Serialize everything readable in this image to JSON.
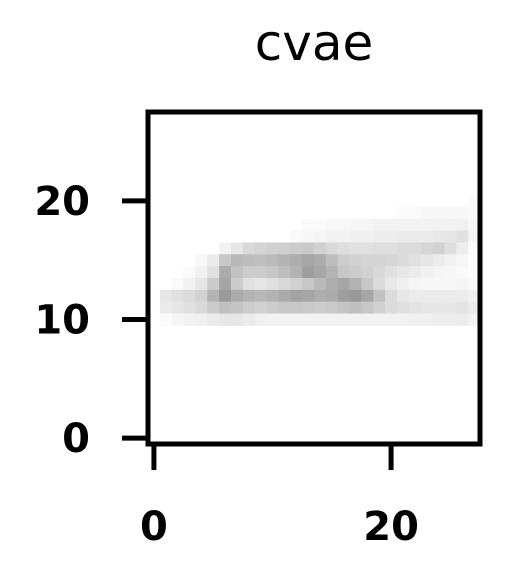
{
  "chart_data": {
    "type": "heatmap",
    "title": "cvae",
    "xlabel": "",
    "ylabel": "",
    "colormap": "gray_r",
    "grid": false,
    "shape": [
      28,
      28
    ],
    "xlim": [
      -0.5,
      27.5
    ],
    "ylim": [
      27.5,
      -0.5
    ],
    "x_ticks": [
      0,
      20
    ],
    "y_ticks": [
      0,
      10,
      20
    ],
    "x_tick_labels": [
      "0",
      "20"
    ],
    "y_tick_labels": [
      "0",
      "10",
      "20"
    ],
    "values": [
      [
        0,
        0,
        0,
        0,
        0,
        0,
        0,
        0,
        0,
        0,
        0,
        0,
        0,
        0,
        0,
        0,
        0,
        0,
        0,
        0,
        0,
        0,
        0,
        0,
        0,
        0,
        0,
        0
      ],
      [
        0,
        0,
        0,
        0,
        0,
        0,
        0,
        0,
        0,
        0,
        0,
        0,
        0,
        0,
        0,
        0,
        0,
        0,
        0,
        0,
        0,
        0,
        0,
        0,
        0,
        0,
        0,
        0
      ],
      [
        0,
        0,
        0,
        0,
        0,
        0,
        0,
        0,
        0,
        0,
        0,
        0,
        0,
        0,
        0,
        0,
        0,
        0,
        0,
        0,
        0,
        0,
        0,
        0,
        0,
        0,
        0,
        0
      ],
      [
        0,
        0,
        0,
        0,
        0,
        0,
        0,
        0,
        0,
        0,
        0,
        0,
        0,
        0,
        0,
        0,
        0,
        0,
        0,
        0,
        0,
        0,
        0,
        0,
        0,
        0,
        0,
        0
      ],
      [
        0,
        0,
        0,
        0,
        0,
        0,
        0,
        0,
        0,
        0,
        0,
        0,
        0,
        0,
        0,
        0,
        0,
        0,
        0,
        0,
        0,
        0,
        0,
        0,
        0,
        0,
        0,
        0
      ],
      [
        0,
        0,
        0,
        0,
        0,
        0,
        0,
        0,
        0,
        0,
        0,
        0,
        0,
        0,
        0,
        0,
        0,
        0,
        0,
        0,
        0,
        0,
        0,
        0,
        0,
        0,
        0,
        0
      ],
      [
        0,
        0,
        0,
        0,
        0,
        0,
        0,
        0,
        0,
        0,
        0,
        0,
        0,
        0,
        0,
        0,
        0,
        0,
        0,
        0,
        0,
        0,
        0,
        0,
        0,
        0,
        0,
        0
      ],
      [
        0,
        0,
        0,
        0,
        0,
        0,
        0,
        0,
        0,
        0,
        0,
        0,
        0,
        0,
        0,
        0,
        0,
        0,
        0,
        0,
        0,
        0,
        0,
        0,
        0,
        0,
        0,
        0.02
      ],
      [
        0,
        0,
        0,
        0,
        0,
        0,
        0,
        0,
        0,
        0,
        0,
        0,
        0,
        0,
        0,
        0,
        0,
        0,
        0,
        0,
        0,
        0.02,
        0.02,
        0.03,
        0.03,
        0.03,
        0.03,
        0.02
      ],
      [
        0,
        0,
        0,
        0,
        0,
        0,
        0,
        0,
        0,
        0,
        0,
        0,
        0,
        0.02,
        0.02,
        0.03,
        0.03,
        0.04,
        0.04,
        0.05,
        0.05,
        0.05,
        0.05,
        0.05,
        0.05,
        0.05,
        0.06,
        0.03
      ],
      [
        0,
        0,
        0,
        0,
        0,
        0,
        0,
        0,
        0,
        0,
        0,
        0,
        0.02,
        0.03,
        0.04,
        0.05,
        0.05,
        0.06,
        0.06,
        0.07,
        0.07,
        0.08,
        0.08,
        0.08,
        0.09,
        0.1,
        0.12,
        0.04
      ],
      [
        0,
        0,
        0,
        0,
        0,
        0,
        0.05,
        0.1,
        0.15,
        0.17,
        0.18,
        0.19,
        0.2,
        0.21,
        0.18,
        0.15,
        0.13,
        0.12,
        0.12,
        0.13,
        0.13,
        0.14,
        0.14,
        0.16,
        0.18,
        0.13,
        0.07,
        0.02
      ],
      [
        0,
        0,
        0,
        0,
        0.03,
        0.08,
        0.22,
        0.28,
        0.26,
        0.25,
        0.27,
        0.3,
        0.32,
        0.35,
        0.33,
        0.26,
        0.2,
        0.18,
        0.17,
        0.17,
        0.16,
        0.14,
        0.12,
        0.1,
        0.08,
        0.05,
        0.03,
        0.01
      ],
      [
        0,
        0,
        0,
        0.02,
        0.06,
        0.12,
        0.33,
        0.24,
        0.2,
        0.2,
        0.22,
        0.26,
        0.3,
        0.38,
        0.35,
        0.3,
        0.22,
        0.2,
        0.18,
        0.15,
        0.12,
        0.1,
        0.08,
        0.06,
        0.04,
        0.03,
        0.02,
        0.01
      ],
      [
        0,
        0,
        0.02,
        0.05,
        0.1,
        0.2,
        0.35,
        0.2,
        0.12,
        0.1,
        0.12,
        0.15,
        0.18,
        0.22,
        0.27,
        0.32,
        0.35,
        0.3,
        0.22,
        0.14,
        0.09,
        0.06,
        0.04,
        0.03,
        0.03,
        0.03,
        0.04,
        0.02
      ],
      [
        0,
        0.1,
        0.12,
        0.14,
        0.18,
        0.3,
        0.4,
        0.33,
        0.3,
        0.28,
        0.3,
        0.33,
        0.36,
        0.35,
        0.32,
        0.33,
        0.38,
        0.4,
        0.35,
        0.24,
        0.14,
        0.1,
        0.08,
        0.08,
        0.08,
        0.08,
        0.08,
        0.06
      ],
      [
        0,
        0.08,
        0.1,
        0.12,
        0.15,
        0.2,
        0.25,
        0.23,
        0.2,
        0.18,
        0.2,
        0.22,
        0.22,
        0.21,
        0.2,
        0.21,
        0.23,
        0.25,
        0.22,
        0.18,
        0.14,
        0.12,
        0.11,
        0.1,
        0.1,
        0.1,
        0.11,
        0.08
      ],
      [
        0,
        0.02,
        0.04,
        0.05,
        0.06,
        0.08,
        0.1,
        0.1,
        0.08,
        0.06,
        0.05,
        0.05,
        0.05,
        0.05,
        0.05,
        0.05,
        0.05,
        0.05,
        0.05,
        0.05,
        0.05,
        0.05,
        0.06,
        0.06,
        0.07,
        0.07,
        0.08,
        0.05
      ],
      [
        0,
        0,
        0,
        0,
        0,
        0,
        0,
        0,
        0,
        0,
        0,
        0,
        0,
        0,
        0,
        0,
        0,
        0,
        0,
        0,
        0,
        0,
        0,
        0,
        0,
        0,
        0,
        0
      ],
      [
        0,
        0,
        0,
        0,
        0,
        0,
        0,
        0,
        0,
        0,
        0,
        0,
        0,
        0,
        0,
        0,
        0,
        0,
        0,
        0,
        0,
        0,
        0,
        0,
        0,
        0,
        0,
        0
      ],
      [
        0,
        0,
        0,
        0,
        0,
        0,
        0,
        0,
        0,
        0,
        0,
        0,
        0,
        0,
        0,
        0,
        0,
        0,
        0,
        0,
        0,
        0,
        0,
        0,
        0,
        0,
        0,
        0
      ],
      [
        0,
        0,
        0,
        0,
        0,
        0,
        0,
        0,
        0,
        0,
        0,
        0,
        0,
        0,
        0,
        0,
        0,
        0,
        0,
        0,
        0,
        0,
        0,
        0,
        0,
        0,
        0,
        0
      ],
      [
        0,
        0,
        0,
        0,
        0,
        0,
        0,
        0,
        0,
        0,
        0,
        0,
        0,
        0,
        0,
        0,
        0,
        0,
        0,
        0,
        0,
        0,
        0,
        0,
        0,
        0,
        0,
        0
      ],
      [
        0,
        0,
        0,
        0,
        0,
        0,
        0,
        0,
        0,
        0,
        0,
        0,
        0,
        0,
        0,
        0,
        0,
        0,
        0,
        0,
        0,
        0,
        0,
        0,
        0,
        0,
        0,
        0
      ],
      [
        0,
        0,
        0,
        0,
        0,
        0,
        0,
        0,
        0,
        0,
        0,
        0,
        0,
        0,
        0,
        0,
        0,
        0,
        0,
        0,
        0,
        0,
        0,
        0,
        0,
        0,
        0,
        0
      ],
      [
        0,
        0,
        0,
        0,
        0,
        0,
        0,
        0,
        0,
        0,
        0,
        0,
        0,
        0,
        0,
        0,
        0,
        0,
        0,
        0,
        0,
        0,
        0,
        0,
        0,
        0,
        0,
        0
      ],
      [
        0,
        0,
        0,
        0,
        0,
        0,
        0,
        0,
        0,
        0,
        0,
        0,
        0,
        0,
        0,
        0,
        0,
        0,
        0,
        0,
        0,
        0,
        0,
        0,
        0,
        0,
        0,
        0
      ],
      [
        0,
        0,
        0,
        0,
        0,
        0,
        0,
        0,
        0,
        0,
        0,
        0,
        0,
        0,
        0,
        0,
        0,
        0,
        0,
        0,
        0,
        0,
        0,
        0,
        0,
        0,
        0,
        0
      ]
    ]
  }
}
